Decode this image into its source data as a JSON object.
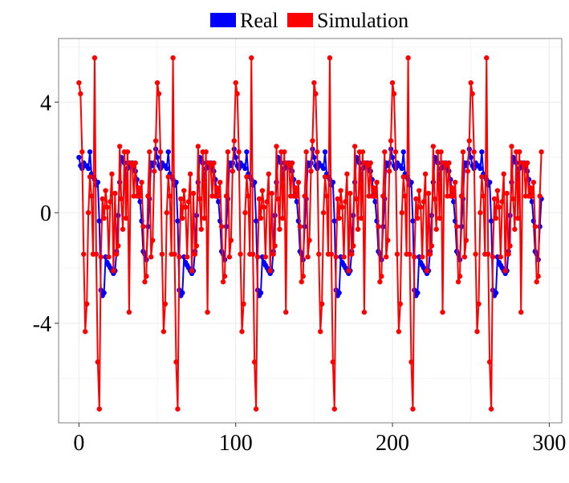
{
  "chart_data": {
    "type": "line",
    "title": "",
    "xlabel": "",
    "ylabel": "",
    "xlim": [
      -13,
      308
    ],
    "ylim": [
      -7.6,
      6.3
    ],
    "x_ticks": [
      0,
      100,
      200,
      300
    ],
    "y_ticks": [
      -4,
      0,
      4
    ],
    "x_tick_labels": [
      "0",
      "100",
      "200",
      "300"
    ],
    "y_tick_labels": [
      "-4",
      "0",
      "4"
    ],
    "grid": true,
    "legend_position": "top",
    "series_colors": {
      "real": "#0000ff",
      "simulation": "#ff0000"
    },
    "cycle_length": 50,
    "total_points": 296,
    "series": [
      {
        "name": "Real",
        "color": "#0000ff",
        "cycle_values": [
          2.0,
          1.7,
          1.6,
          1.8,
          1.7,
          1.7,
          1.6,
          2.2,
          1.4,
          1.3,
          1.2,
          1.0,
          1.1,
          -0.3,
          -2.8,
          -3.0,
          -2.9,
          -1.6,
          -1.8,
          -1.9,
          -2.0,
          -2.1,
          -2.2,
          -2.1,
          -1.4,
          -0.1,
          1.1,
          2.0,
          1.9,
          1.8,
          1.2,
          1.6,
          1.8,
          1.7,
          1.8,
          1.6,
          1.5,
          1.2,
          0.6,
          0.4,
          -0.3,
          -1.4,
          -1.5,
          -1.7,
          -0.5,
          0.5,
          1.8,
          1.7,
          1.8,
          2.3
        ]
      },
      {
        "name": "Simulation",
        "color": "#ff0000",
        "cycle_values": [
          4.7,
          4.3,
          2.2,
          -1.5,
          -4.3,
          -3.3,
          0.0,
          1.3,
          0.6,
          -1.5,
          5.6,
          -1.5,
          -5.4,
          -7.1,
          -1.6,
          0.5,
          -0.2,
          0.8,
          0.2,
          -1.6,
          0.4,
          1.4,
          -2.1,
          0.7,
          -1.5,
          -1.2,
          2.4,
          0.5,
          -0.6,
          2.2,
          -0.2,
          2.2,
          -3.6,
          1.8,
          1.7,
          0.6,
          1.8,
          0.6,
          0.9,
          0.6,
          1.1,
          -0.5,
          -2.5,
          -2.3,
          0.6,
          2.2,
          -1.6,
          -1.0,
          1.5,
          2.6
        ]
      }
    ]
  }
}
